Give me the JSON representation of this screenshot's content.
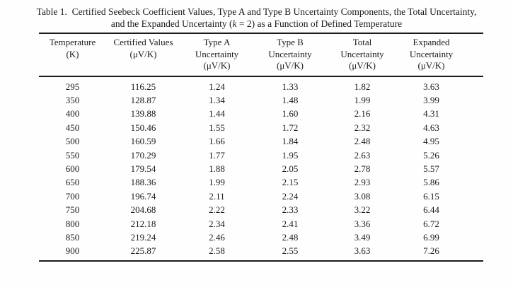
{
  "caption": {
    "line1": "Table 1.  Certified Seebeck Coefficient Values, Type A and Type B Uncertainty Components, the Total Uncertainty,",
    "line2_before_k": "and the Expanded Uncertainty (",
    "line2_k": "k",
    "line2_after_k": " = 2) as a Function of Defined Temperature"
  },
  "table": {
    "columns": [
      {
        "name": "temperature",
        "header_lines": [
          "Temperature",
          "(K)"
        ]
      },
      {
        "name": "certified-values",
        "header_lines": [
          "Certified Values",
          "(μV/K)"
        ]
      },
      {
        "name": "type-a-uncertainty",
        "header_lines": [
          "Type A",
          "Uncertainty",
          "(μV/K)"
        ]
      },
      {
        "name": "type-b-uncertainty",
        "header_lines": [
          "Type B",
          "Uncertainty",
          "(μV/K)"
        ]
      },
      {
        "name": "total-uncertainty",
        "header_lines": [
          "Total",
          "Uncertainty",
          "(μV/K)"
        ]
      },
      {
        "name": "expanded-uncertainty",
        "header_lines": [
          "Expanded",
          "Uncertainty",
          "(μV/K)"
        ]
      }
    ],
    "rows": [
      [
        "295",
        "116.25",
        "1.24",
        "1.33",
        "1.82",
        "3.63"
      ],
      [
        "350",
        "128.87",
        "1.34",
        "1.48",
        "1.99",
        "3.99"
      ],
      [
        "400",
        "139.88",
        "1.44",
        "1.60",
        "2.16",
        "4.31"
      ],
      [
        "450",
        "150.46",
        "1.55",
        "1.72",
        "2.32",
        "4.63"
      ],
      [
        "500",
        "160.59",
        "1.66",
        "1.84",
        "2.48",
        "4.95"
      ],
      [
        "550",
        "170.29",
        "1.77",
        "1.95",
        "2.63",
        "5.26"
      ],
      [
        "600",
        "179.54",
        "1.88",
        "2.05",
        "2.78",
        "5.57"
      ],
      [
        "650",
        "188.36",
        "1.99",
        "2.15",
        "2.93",
        "5.86"
      ],
      [
        "700",
        "196.74",
        "2.11",
        "2.24",
        "3.08",
        "6.15"
      ],
      [
        "750",
        "204.68",
        "2.22",
        "2.33",
        "3.22",
        "6.44"
      ],
      [
        "800",
        "212.18",
        "2.34",
        "2.41",
        "3.36",
        "6.72"
      ],
      [
        "850",
        "219.24",
        "2.46",
        "2.48",
        "3.49",
        "6.99"
      ],
      [
        "900",
        "225.87",
        "2.58",
        "2.55",
        "3.63",
        "7.26"
      ]
    ]
  }
}
